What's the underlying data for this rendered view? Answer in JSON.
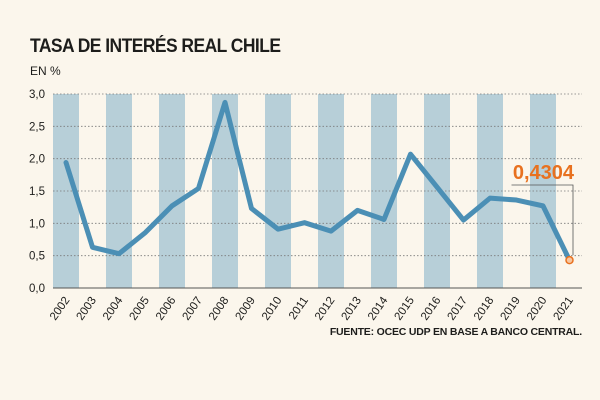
{
  "title": "TASA DE INTERÉS REAL CHILE",
  "subtitle": "EN %",
  "source": "FUENTE: OCEC UDP EN BASE A BANCO CENTRAL.",
  "colors": {
    "background": "#fbf6ec",
    "band": "#b7cfd8",
    "line": "#4b8fb5",
    "highlight": "#e8711f",
    "grid": "#7a7a7a"
  },
  "chart_data": {
    "type": "line",
    "x": [
      "2002",
      "2003",
      "2004",
      "2005",
      "2006",
      "2007",
      "2008",
      "2009",
      "2010",
      "2011",
      "2012",
      "2013",
      "2014",
      "2015",
      "2016",
      "2017",
      "2018",
      "2019",
      "2020",
      "2021"
    ],
    "y": [
      1.94,
      0.63,
      0.53,
      0.86,
      1.27,
      1.54,
      2.87,
      1.23,
      0.91,
      1.01,
      0.88,
      1.2,
      1.06,
      2.07,
      1.56,
      1.05,
      1.39,
      1.36,
      1.27,
      0.4304
    ],
    "ylim": [
      0,
      3.0
    ],
    "yticks": [
      "0,0",
      "0,5",
      "1,0",
      "1,5",
      "2,0",
      "2,5",
      "3,0"
    ],
    "ytick_values": [
      0,
      0.5,
      1.0,
      1.5,
      2.0,
      2.5,
      3.0
    ],
    "grid": "horizontal dashed",
    "background_bands": "alternating vertical bands on even years",
    "annotation": {
      "text": "0,4304",
      "year": "2021"
    }
  }
}
